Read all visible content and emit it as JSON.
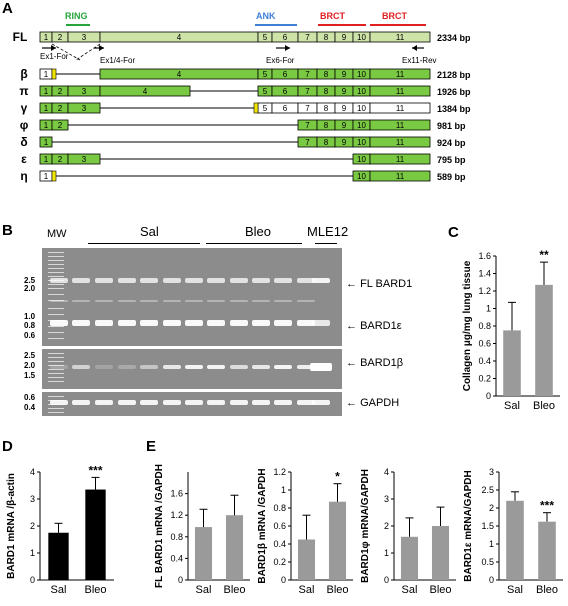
{
  "panels": {
    "A": "A",
    "B": "B",
    "C": "C",
    "D": "D",
    "E": "E"
  },
  "domains": {
    "ring": "RING",
    "ank": "ANK",
    "brct1": "BRCT",
    "brct2": "BRCT",
    "ring_color": "#27a33b",
    "ank_color": "#3f7fd6",
    "brct_color": "#e02020"
  },
  "isoforms": [
    {
      "name": "FL",
      "size": "2334 bp"
    },
    {
      "name": "β",
      "size": "2128 bp"
    },
    {
      "name": "π",
      "size": "1926 bp"
    },
    {
      "name": "γ",
      "size": "1384 bp"
    },
    {
      "name": "φ",
      "size": "981 bp"
    },
    {
      "name": "δ",
      "size": "924 bp"
    },
    {
      "name": "ε",
      "size": "795 bp"
    },
    {
      "name": "η",
      "size": "589 bp"
    }
  ],
  "exons": [
    "1",
    "2",
    "3",
    "4",
    "5",
    "6",
    "7",
    "8",
    "9",
    "10",
    "11"
  ],
  "primers": {
    "ex1for": "Ex1-For",
    "ex14for": "Ex1/4-For",
    "ex6for": "Ex6-For",
    "ex11rev": "Ex11-Rev"
  },
  "colors": {
    "exon_green": "#7ac943",
    "fl_green": "#cde3a8",
    "yellow": "#f2e600",
    "bar_gray": "#9a9a9a"
  },
  "gel": {
    "mw": "MW",
    "sal": "Sal",
    "bleo": "Bleo",
    "mle12": "MLE12",
    "ladder_top": [
      "2.5",
      "2.0",
      "1.0",
      "0.8",
      "0.6"
    ],
    "ladder_mid": [
      "2.5",
      "2.0",
      "1.5"
    ],
    "ladder_bot": [
      "0.6",
      "0.4"
    ],
    "band_fl": "FL BARD1",
    "band_eps": "BARD1ε",
    "band_beta": "BARD1β",
    "band_gapdh": "GAPDH"
  },
  "chart_data": [
    {
      "panel": "C",
      "type": "bar",
      "categories": [
        "Sal",
        "Bleo"
      ],
      "values": [
        0.75,
        1.27
      ],
      "errors": [
        0.32,
        0.26
      ],
      "ylabel": "Collagen μg/mg lung tissue",
      "ylim": [
        0,
        1.6
      ],
      "yticks": [
        "0",
        "0.2",
        "0.4",
        "0.6",
        "0.8",
        "1",
        "1.2",
        "1.4",
        "1.6"
      ],
      "annotations": [
        "",
        "**"
      ]
    },
    {
      "panel": "D",
      "type": "bar",
      "categories": [
        "Sal",
        "Bleo"
      ],
      "values": [
        1.75,
        3.35
      ],
      "errors": [
        0.35,
        0.45
      ],
      "ylabel": "BARD1 mRNA /β-actin",
      "ylim": [
        0,
        4
      ],
      "yticks": [
        "0",
        "1",
        "2",
        "3",
        "4"
      ],
      "annotations": [
        "",
        "***"
      ]
    },
    {
      "panel": "E1",
      "type": "bar",
      "categories": [
        "Sal",
        "Bleo"
      ],
      "values": [
        0.98,
        1.2
      ],
      "errors": [
        0.33,
        0.37
      ],
      "ylabel": "FL BARD1 mRNA /GAPDH",
      "ylim": [
        0,
        2.0
      ],
      "yticks": [
        "0",
        "0.4",
        "0.8",
        "1.2",
        "1.6"
      ],
      "annotations": [
        "",
        ""
      ]
    },
    {
      "panel": "E2",
      "type": "bar",
      "categories": [
        "Sal",
        "Bleo"
      ],
      "values": [
        0.45,
        0.87
      ],
      "errors": [
        0.27,
        0.2
      ],
      "ylabel": "BARD1β mRNA /GAPDH",
      "ylim": [
        0,
        1.2
      ],
      "yticks": [
        "0",
        "0.2",
        "0.4",
        "0.6",
        "0.8",
        "1",
        "1.2"
      ],
      "annotations": [
        "",
        "*"
      ]
    },
    {
      "panel": "E3",
      "type": "bar",
      "categories": [
        "Sal",
        "Bleo"
      ],
      "values": [
        1.6,
        2.0
      ],
      "errors": [
        0.7,
        0.7
      ],
      "ylabel": "BARD1φ mRNA/GAPDH",
      "ylim": [
        0,
        4
      ],
      "yticks": [
        "0",
        "1",
        "2",
        "3",
        "4"
      ],
      "annotations": [
        "",
        ""
      ]
    },
    {
      "panel": "E4",
      "type": "bar",
      "categories": [
        "Sal",
        "Bleo"
      ],
      "values": [
        2.2,
        1.62
      ],
      "errors": [
        0.25,
        0.25
      ],
      "ylabel": "BARD1ε mRNA/GAPDH",
      "ylim": [
        0,
        3
      ],
      "yticks": [
        "0",
        "0.5",
        "1",
        "1.5",
        "2",
        "2.5",
        "3"
      ],
      "annotations": [
        "",
        "***"
      ]
    }
  ]
}
